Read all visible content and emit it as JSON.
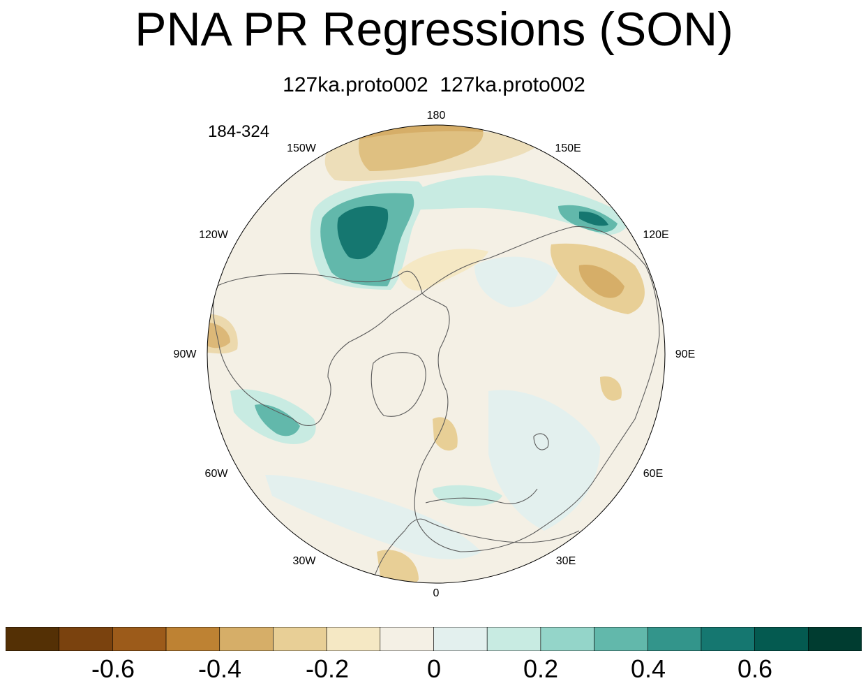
{
  "title": "PNA PR Regressions (SON)",
  "subtitle": "127ka.proto002  127ka.proto002",
  "period_label": "184-324",
  "longitude_labels": {
    "lon_180": "180",
    "lon_150e": "150E",
    "lon_120e": "120E",
    "lon_90e": "90E",
    "lon_60e": "60E",
    "lon_30e": "30E",
    "lon_0": "0",
    "lon_30w": "30W",
    "lon_60w": "60W",
    "lon_90w": "90W",
    "lon_120w": "120W",
    "lon_150w": "150W"
  },
  "colorbar": {
    "colors": [
      "#543005",
      "#7a420e",
      "#9c5b1a",
      "#be8233",
      "#d6ae68",
      "#e8cf96",
      "#f5e8c4",
      "#f4f0e5",
      "#e3f0ee",
      "#c8ebe2",
      "#94d5c9",
      "#62b8ab",
      "#33958b",
      "#157770",
      "#045a50",
      "#003c30"
    ],
    "tick_labels": [
      "-0.6",
      "-0.4",
      "-0.2",
      "0",
      "0.2",
      "0.4",
      "0.6"
    ]
  },
  "map_colors": {
    "background": "#f4f0e5",
    "strong_negative": "#d6ae68",
    "moderate_negative": "#e8cf96",
    "weak_negative": "#f5e8c4",
    "weak_positive": "#e3f0ee",
    "moderate_positive": "#c8ebe2",
    "strong_positive": "#62b8ab",
    "very_strong_positive": "#157770",
    "extreme_negative": "#be8233",
    "coastline": "#5a5a5a"
  }
}
